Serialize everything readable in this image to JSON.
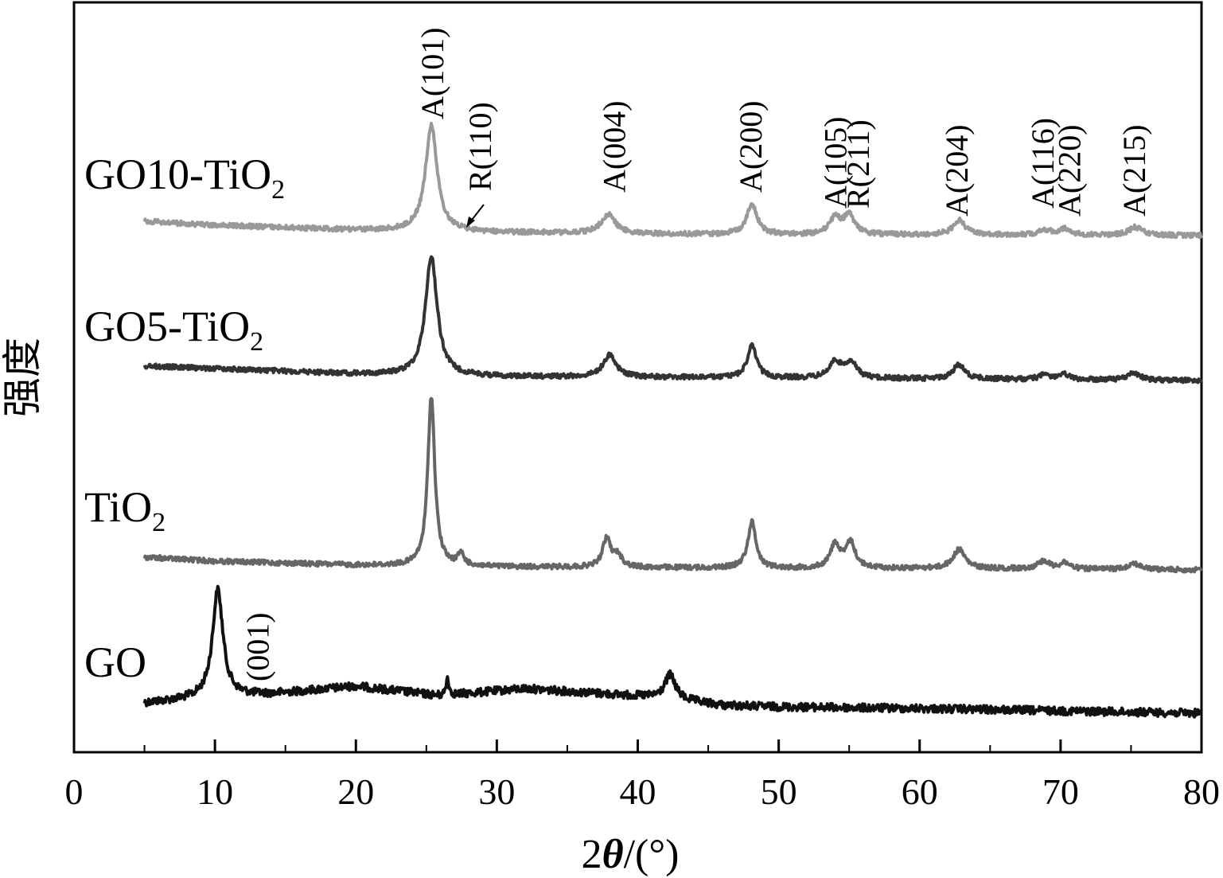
{
  "chart_data": {
    "type": "line",
    "xlabel_prefix": "2",
    "xlabel_symbol": "θ",
    "xlabel_suffix": "/(°)",
    "ylabel": "强度",
    "xlim": [
      0,
      80
    ],
    "x_ticks": [
      0,
      10,
      20,
      30,
      40,
      50,
      60,
      70,
      80
    ],
    "x_tick_labels": [
      "0",
      "10",
      "20",
      "30",
      "40",
      "50",
      "60",
      "70",
      "80"
    ],
    "x_range": [
      5,
      80
    ],
    "grid": false,
    "legend": "none",
    "series": [
      {
        "name": "GO",
        "name_main": "GO",
        "name_sub": "",
        "color": "#111111",
        "baseline": [
          [
            5,
            883
          ],
          [
            10,
            876
          ],
          [
            14,
            872
          ],
          [
            20,
            862
          ],
          [
            26,
            874
          ],
          [
            32,
            865
          ],
          [
            38,
            872
          ],
          [
            42,
            877
          ],
          [
            46,
            886
          ],
          [
            50,
            888
          ],
          [
            60,
            890
          ],
          [
            70,
            893
          ],
          [
            80,
            896
          ]
        ],
        "noise": 5,
        "peaks": [
          {
            "x": 10.2,
            "h": 135,
            "w": 0.45
          },
          {
            "x": 26.5,
            "h": 22,
            "w": 0.12
          },
          {
            "x": 42.3,
            "h": 30,
            "w": 0.45
          }
        ]
      },
      {
        "name": "TiO2",
        "name_main": "TiO",
        "name_sub": "2",
        "color": "#666666",
        "baseline": [
          [
            5,
            700
          ],
          [
            10,
            705
          ],
          [
            20,
            710
          ],
          [
            30,
            712
          ],
          [
            40,
            713
          ],
          [
            50,
            714
          ],
          [
            60,
            714
          ],
          [
            70,
            715
          ],
          [
            80,
            716
          ]
        ],
        "noise": 3,
        "peaks": [
          {
            "x": 25.35,
            "h": 213,
            "w": 0.3
          },
          {
            "x": 27.45,
            "h": 15,
            "w": 0.25
          },
          {
            "x": 37.8,
            "h": 36,
            "w": 0.35
          },
          {
            "x": 38.6,
            "h": 14,
            "w": 0.35
          },
          {
            "x": 48.1,
            "h": 58,
            "w": 0.35
          },
          {
            "x": 54.0,
            "h": 30,
            "w": 0.4
          },
          {
            "x": 55.1,
            "h": 32,
            "w": 0.4
          },
          {
            "x": 62.8,
            "h": 24,
            "w": 0.5
          },
          {
            "x": 68.8,
            "h": 10,
            "w": 0.5
          },
          {
            "x": 70.3,
            "h": 8,
            "w": 0.4
          },
          {
            "x": 75.2,
            "h": 8,
            "w": 0.5
          }
        ]
      },
      {
        "name": "GO5-TiO2",
        "name_main": "GO5-TiO",
        "name_sub": "2",
        "color": "#333333",
        "baseline": [
          [
            5,
            460
          ],
          [
            10,
            463
          ],
          [
            20,
            470
          ],
          [
            30,
            473
          ],
          [
            40,
            474
          ],
          [
            50,
            475
          ],
          [
            60,
            476
          ],
          [
            70,
            477
          ],
          [
            80,
            478
          ]
        ],
        "noise": 3,
        "peaks": [
          {
            "x": 25.35,
            "h": 150,
            "w": 0.5
          },
          {
            "x": 38.0,
            "h": 28,
            "w": 0.55
          },
          {
            "x": 48.1,
            "h": 40,
            "w": 0.4
          },
          {
            "x": 54.0,
            "h": 20,
            "w": 0.5
          },
          {
            "x": 55.1,
            "h": 20,
            "w": 0.5
          },
          {
            "x": 62.8,
            "h": 18,
            "w": 0.5
          },
          {
            "x": 68.9,
            "h": 6,
            "w": 0.5
          },
          {
            "x": 70.3,
            "h": 6,
            "w": 0.4
          },
          {
            "x": 75.2,
            "h": 9,
            "w": 0.5
          }
        ]
      },
      {
        "name": "GO10-TiO2",
        "name_main": "GO10-TiO",
        "name_sub": "2",
        "color": "#999999",
        "baseline": [
          [
            5,
            278
          ],
          [
            10,
            283
          ],
          [
            20,
            289
          ],
          [
            30,
            292
          ],
          [
            40,
            294
          ],
          [
            50,
            295
          ],
          [
            60,
            295
          ],
          [
            70,
            295
          ],
          [
            80,
            296
          ]
        ],
        "noise": 3,
        "peaks": [
          {
            "x": 25.35,
            "h": 133,
            "w": 0.5
          },
          {
            "x": 37.9,
            "h": 24,
            "w": 0.6
          },
          {
            "x": 48.1,
            "h": 38,
            "w": 0.45
          },
          {
            "x": 54.0,
            "h": 20,
            "w": 0.5
          },
          {
            "x": 55.0,
            "h": 24,
            "w": 0.45
          },
          {
            "x": 62.8,
            "h": 18,
            "w": 0.5
          },
          {
            "x": 68.9,
            "h": 6,
            "w": 0.5
          },
          {
            "x": 70.3,
            "h": 8,
            "w": 0.4
          },
          {
            "x": 75.3,
            "h": 10,
            "w": 0.55
          }
        ]
      }
    ],
    "peak_labels": [
      {
        "text": "A(101)",
        "x": 25.4,
        "series": "GO10-TiO2"
      },
      {
        "text": "R(110)",
        "x": 28.8,
        "series": "GO10-TiO2"
      },
      {
        "text": "A(004)",
        "x": 38.3,
        "series": "GO10-TiO2"
      },
      {
        "text": "A(200)",
        "x": 48.0,
        "series": "GO10-TiO2"
      },
      {
        "text": "A(105)",
        "x": 54.0,
        "series": "GO10-TiO2"
      },
      {
        "text": "R(211)",
        "x": 55.6,
        "series": "GO10-TiO2"
      },
      {
        "text": "A(204)",
        "x": 62.6,
        "series": "GO10-TiO2"
      },
      {
        "text": "A(116)",
        "x": 68.7,
        "series": "GO10-TiO2"
      },
      {
        "text": "A(220)",
        "x": 70.6,
        "series": "GO10-TiO2"
      },
      {
        "text": "A(215)",
        "x": 75.2,
        "series": "GO10-TiO2"
      },
      {
        "text": "(001)",
        "x": 13.0,
        "series": "GO"
      }
    ]
  }
}
